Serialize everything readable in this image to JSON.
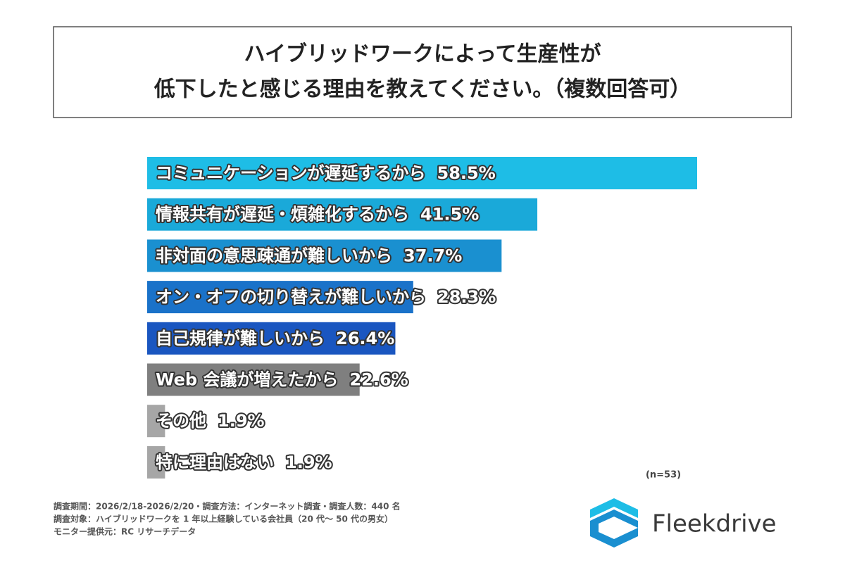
{
  "chart_data": {
    "type": "bar",
    "title": [
      "ハイブリッドワークによって生産性が",
      "低下したと感じる理由を教えてください。（複数回答可）"
    ],
    "categories": [
      "コミュニケーションが遅延するから",
      "情報共有が遅延・煩雑化するから",
      "非対面の意思疎通が難しいから",
      "オン・オフの切り替えが難しいから",
      "自己規律が難しいから",
      "Web 会議が増えたから",
      "その他",
      "特に理由はない"
    ],
    "values": [
      58.5,
      41.5,
      37.7,
      28.3,
      26.4,
      22.6,
      1.9,
      1.9
    ],
    "value_labels": [
      "58.5%",
      "41.5%",
      "37.7%",
      "28.3%",
      "26.4%",
      "22.6%",
      "1.9%",
      "1.9%"
    ],
    "colors": [
      "#1ebde6",
      "#1aa9d9",
      "#1a90d0",
      "#1a72c9",
      "#1a56c0",
      "#7f7f7f",
      "#a6a6a6",
      "#a6a6a6"
    ],
    "note": "(n=53)",
    "footnotes": [
      "調査期間：2026/2/18-2026/2/20・調査方法：インターネット調査・調査人数：440 名",
      "調査対象：ハイブリッドワークを 1 年以上経験している会社員（20 代～ 50 代の男女）",
      "モニター提供元：RC リサーチデータ"
    ],
    "logo": "Fleekdrive"
  }
}
